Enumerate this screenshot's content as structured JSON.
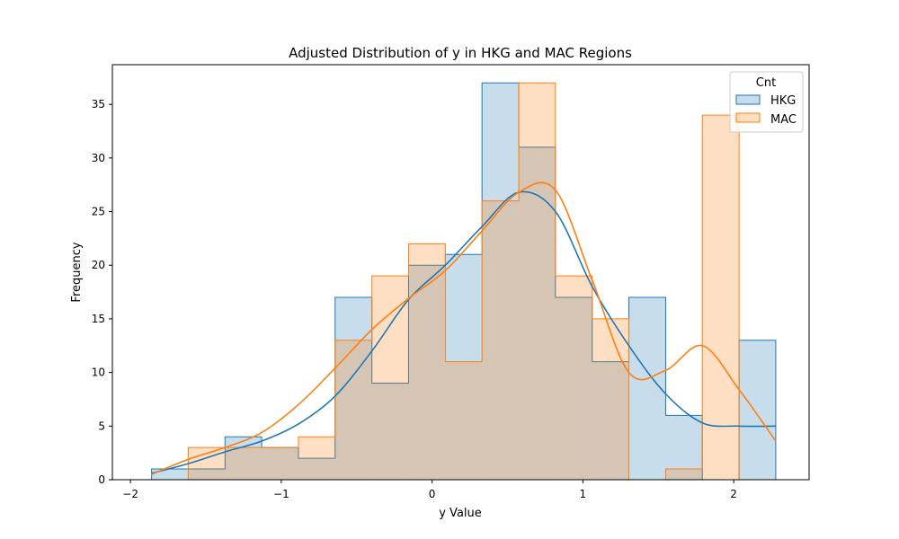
{
  "chart_data": {
    "type": "histogram",
    "title": "Adjusted Distribution of y in HKG and MAC Regions",
    "xlabel": "y Value",
    "ylabel": "Frequency",
    "xlim": [
      -2.12,
      2.5
    ],
    "ylim": [
      0,
      38.7
    ],
    "xticks": [
      -2,
      -1,
      0,
      1,
      2
    ],
    "xtick_labels": [
      "−2",
      "−1",
      "0",
      "1",
      "2"
    ],
    "yticks": [
      0,
      5,
      10,
      15,
      20,
      25,
      30,
      35
    ],
    "ytick_labels": [
      "0",
      "5",
      "10",
      "15",
      "20",
      "25",
      "30",
      "35"
    ],
    "bin_edges": [
      -1.86,
      -1.617,
      -1.373,
      -1.13,
      -0.886,
      -0.643,
      -0.399,
      -0.156,
      0.088,
      0.331,
      0.575,
      0.818,
      1.062,
      1.305,
      1.549,
      1.792,
      2.036,
      2.279
    ],
    "legend": {
      "title": "Cnt",
      "position": "upper right"
    },
    "grid": false,
    "series": [
      {
        "name": "HKG",
        "color": "#1f77b4",
        "counts": [
          1,
          1,
          4,
          3,
          2,
          17,
          9,
          20,
          21,
          37,
          31,
          17,
          11,
          17,
          6,
          0,
          13
        ],
        "kde_y": [
          0.6,
          1.5,
          2.6,
          3.6,
          5.2,
          7.8,
          12.0,
          16.8,
          20.0,
          23.6,
          26.8,
          25.0,
          18.0,
          12.5,
          8.0,
          5.3,
          5.0,
          5.0
        ]
      },
      {
        "name": "MAC",
        "color": "#ff7f0e",
        "counts": [
          0,
          3,
          3,
          3,
          4,
          13,
          19,
          22,
          11,
          26,
          37,
          19,
          15,
          0,
          1,
          34,
          0
        ],
        "kde_y": [
          0.5,
          1.9,
          3.0,
          4.4,
          7.0,
          10.4,
          14.0,
          16.9,
          19.5,
          23.2,
          26.8,
          27.0,
          18.6,
          10.0,
          10.2,
          12.5,
          8.4,
          3.6
        ]
      }
    ]
  }
}
